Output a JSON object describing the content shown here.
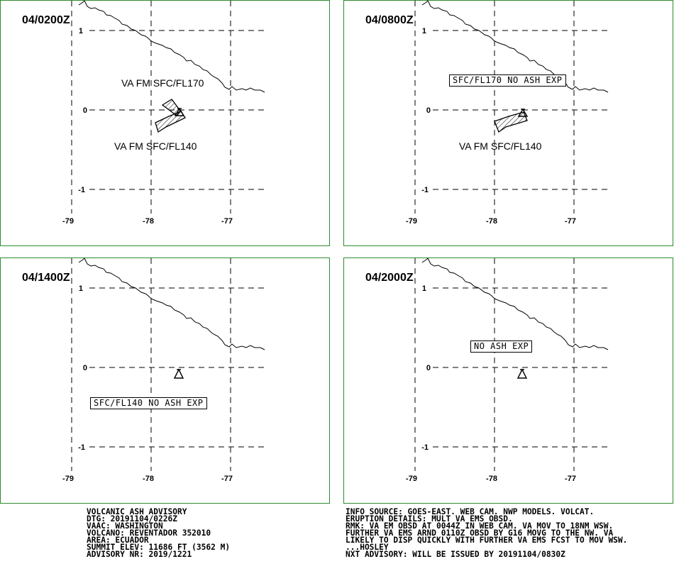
{
  "panels": [
    {
      "time": "04/0200Z",
      "labels": [
        "VA FM SFC/FL170",
        "VA FM SFC/FL140"
      ],
      "boxes": []
    },
    {
      "time": "04/0800Z",
      "labels": [
        "VA FM SFC/FL140"
      ],
      "boxes": [
        "SFC/FL170 NO ASH EXP"
      ]
    },
    {
      "time": "04/1400Z",
      "labels": [],
      "boxes": [
        "SFC/FL140 NO ASH EXP"
      ]
    },
    {
      "time": "04/2000Z",
      "labels": [],
      "boxes": [
        "NO ASH EXP"
      ]
    }
  ],
  "axes": {
    "lat_ticks": [
      "1",
      "0",
      "-1"
    ],
    "lon_ticks": [
      "-79",
      "-78",
      "-77"
    ]
  },
  "advisory": {
    "header": "VOLCANIC ASH ADVISORY",
    "dtg": "DTG: 20191104/0226Z",
    "vaac": "VAAC: WASHINGTON",
    "volcano": "VOLCANO: REVENTADOR 352010",
    "area": "AREA: ECUADOR",
    "summit": "SUMMIT ELEV: 11686 FT (3562 M)",
    "nr": "ADVISORY NR: 2019/1221"
  },
  "details": {
    "info": "INFO SOURCE: GOES-EAST. WEB CAM. NWP MODELS. VOLCAT.",
    "eruption": "ERUPTION DETAILS: MULT VA EMS OBSD.",
    "rmk1": "RMK: VA EM OBSD AT 0044Z IN WEB CAM. VA MOV TO 18NM WSW.",
    "rmk2": "FURTHER VA EMS ARND 0110Z OBSD BY G16 MOVG TO THE NW. VA",
    "rmk3": "LIKELY TO DISP QUICKLY WITH FURTHER VA EMS FCST TO MOV WSW.",
    "sig": "...HOSLEY",
    "next": "NXT ADVISORY: WILL BE ISSUED BY 20191104/0830Z"
  }
}
